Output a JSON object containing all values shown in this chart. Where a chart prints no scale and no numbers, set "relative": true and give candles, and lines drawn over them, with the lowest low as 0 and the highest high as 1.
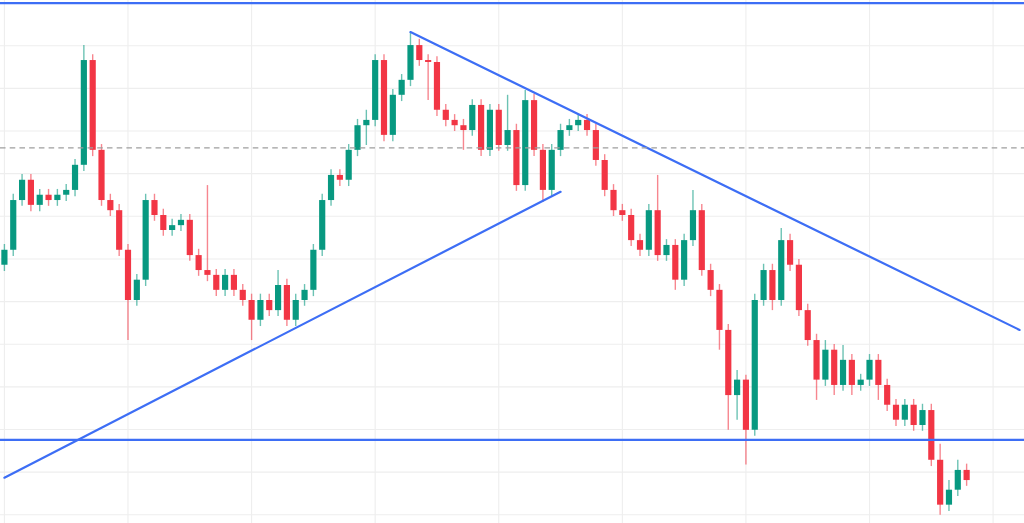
{
  "chart_data": {
    "type": "candlestick",
    "relative": true,
    "grid": true,
    "categories": [
      null,
      null,
      null,
      null,
      null,
      null,
      null,
      null,
      null,
      null,
      null,
      null,
      null,
      null,
      null,
      null,
      null,
      null,
      null,
      null,
      null,
      null,
      null,
      null,
      null,
      null,
      null,
      null,
      null,
      null,
      null,
      null,
      null,
      null,
      null,
      null,
      null,
      null,
      null,
      null,
      null,
      null,
      null,
      null,
      null,
      null,
      null,
      null,
      null,
      null,
      null,
      null,
      null,
      null,
      null,
      null,
      null,
      null,
      null,
      null,
      null,
      null,
      null,
      null,
      null,
      null,
      null,
      null,
      null,
      null,
      null,
      null,
      null,
      null,
      null,
      null,
      null,
      null,
      null,
      null,
      null,
      null,
      null,
      null,
      null,
      null,
      null,
      null,
      null,
      null,
      null,
      null,
      null,
      null,
      null,
      null,
      null,
      null,
      null,
      null,
      null,
      null,
      null,
      null,
      null,
      null,
      null,
      null,
      null,
      null,
      null,
      null,
      null,
      null,
      null,
      null
    ],
    "ohlc": [
      [
        0.518,
        0.561,
        0.505,
        0.549
      ],
      [
        0.549,
        0.665,
        0.536,
        0.652
      ],
      [
        0.652,
        0.706,
        0.64,
        0.694
      ],
      [
        0.694,
        0.706,
        0.629,
        0.642
      ],
      [
        0.642,
        0.675,
        0.629,
        0.663
      ],
      [
        0.663,
        0.675,
        0.64,
        0.652
      ],
      [
        0.652,
        0.675,
        0.64,
        0.663
      ],
      [
        0.663,
        0.685,
        0.65,
        0.673
      ],
      [
        0.673,
        0.737,
        0.66,
        0.725
      ],
      [
        0.725,
        0.973,
        0.712,
        0.942
      ],
      [
        0.942,
        0.954,
        0.743,
        0.756
      ],
      [
        0.756,
        0.768,
        0.64,
        0.652
      ],
      [
        0.652,
        0.665,
        0.619,
        0.631
      ],
      [
        0.631,
        0.644,
        0.536,
        0.549
      ],
      [
        0.549,
        0.561,
        0.362,
        0.445
      ],
      [
        0.445,
        0.499,
        0.433,
        0.487
      ],
      [
        0.487,
        0.665,
        0.474,
        0.652
      ],
      [
        0.652,
        0.665,
        0.609,
        0.621
      ],
      [
        0.621,
        0.634,
        0.578,
        0.59
      ],
      [
        0.59,
        0.613,
        0.578,
        0.6
      ],
      [
        0.6,
        0.623,
        0.588,
        0.611
      ],
      [
        0.611,
        0.623,
        0.526,
        0.538
      ],
      [
        0.538,
        0.551,
        0.495,
        0.507
      ],
      [
        0.507,
        0.683,
        0.484,
        0.497
      ],
      [
        0.497,
        0.509,
        0.453,
        0.466
      ],
      [
        0.466,
        0.509,
        0.453,
        0.497
      ],
      [
        0.497,
        0.509,
        0.453,
        0.466
      ],
      [
        0.466,
        0.478,
        0.433,
        0.445
      ],
      [
        0.445,
        0.458,
        0.362,
        0.404
      ],
      [
        0.404,
        0.458,
        0.391,
        0.445
      ],
      [
        0.445,
        0.458,
        0.412,
        0.424
      ],
      [
        0.424,
        0.507,
        0.412,
        0.476
      ],
      [
        0.476,
        0.489,
        0.391,
        0.404
      ],
      [
        0.404,
        0.458,
        0.391,
        0.445
      ],
      [
        0.445,
        0.478,
        0.433,
        0.466
      ],
      [
        0.466,
        0.561,
        0.453,
        0.549
      ],
      [
        0.549,
        0.665,
        0.536,
        0.652
      ],
      [
        0.652,
        0.716,
        0.64,
        0.704
      ],
      [
        0.704,
        0.716,
        0.681,
        0.694
      ],
      [
        0.694,
        0.768,
        0.681,
        0.756
      ],
      [
        0.756,
        0.82,
        0.743,
        0.807
      ],
      [
        0.807,
        0.839,
        0.766,
        0.818
      ],
      [
        0.818,
        0.954,
        0.805,
        0.942
      ],
      [
        0.942,
        0.954,
        0.774,
        0.787
      ],
      [
        0.787,
        0.882,
        0.774,
        0.87
      ],
      [
        0.87,
        0.913,
        0.857,
        0.901
      ],
      [
        0.901,
        1.0,
        0.888,
        0.973
      ],
      [
        0.973,
        0.986,
        0.93,
        0.942
      ],
      [
        0.942,
        0.954,
        0.859,
        0.938
      ],
      [
        0.938,
        0.95,
        0.826,
        0.839
      ],
      [
        0.839,
        0.851,
        0.805,
        0.818
      ],
      [
        0.818,
        0.83,
        0.795,
        0.807
      ],
      [
        0.807,
        0.82,
        0.756,
        0.797
      ],
      [
        0.797,
        0.861,
        0.785,
        0.849
      ],
      [
        0.849,
        0.861,
        0.743,
        0.756
      ],
      [
        0.756,
        0.851,
        0.743,
        0.839
      ],
      [
        0.839,
        0.851,
        0.754,
        0.766
      ],
      [
        0.766,
        0.87,
        0.754,
        0.797
      ],
      [
        0.797,
        0.81,
        0.671,
        0.683
      ],
      [
        0.683,
        0.88,
        0.671,
        0.859
      ],
      [
        0.859,
        0.872,
        0.743,
        0.756
      ],
      [
        0.756,
        0.768,
        0.648,
        0.673
      ],
      [
        0.673,
        0.768,
        0.66,
        0.756
      ],
      [
        0.756,
        0.81,
        0.743,
        0.797
      ],
      [
        0.797,
        0.82,
        0.785,
        0.807
      ],
      [
        0.807,
        0.83,
        0.795,
        0.818
      ],
      [
        0.818,
        0.83,
        0.785,
        0.797
      ],
      [
        0.797,
        0.81,
        0.723,
        0.735
      ],
      [
        0.735,
        0.747,
        0.66,
        0.673
      ],
      [
        0.673,
        0.685,
        0.619,
        0.631
      ],
      [
        0.631,
        0.644,
        0.609,
        0.621
      ],
      [
        0.621,
        0.634,
        0.557,
        0.569
      ],
      [
        0.569,
        0.582,
        0.536,
        0.549
      ],
      [
        0.549,
        0.644,
        0.536,
        0.631
      ],
      [
        0.631,
        0.704,
        0.526,
        0.538
      ],
      [
        0.538,
        0.571,
        0.526,
        0.559
      ],
      [
        0.559,
        0.571,
        0.466,
        0.487
      ],
      [
        0.487,
        0.582,
        0.474,
        0.569
      ],
      [
        0.569,
        0.673,
        0.557,
        0.631
      ],
      [
        0.631,
        0.644,
        0.495,
        0.507
      ],
      [
        0.507,
        0.52,
        0.453,
        0.466
      ],
      [
        0.466,
        0.478,
        0.342,
        0.383
      ],
      [
        0.383,
        0.395,
        0.176,
        0.248
      ],
      [
        0.248,
        0.3,
        0.197,
        0.28
      ],
      [
        0.28,
        0.29,
        0.104,
        0.176
      ],
      [
        0.176,
        0.458,
        0.164,
        0.445
      ],
      [
        0.445,
        0.52,
        0.433,
        0.507
      ],
      [
        0.507,
        0.52,
        0.424,
        0.445
      ],
      [
        0.445,
        0.594,
        0.433,
        0.569
      ],
      [
        0.569,
        0.582,
        0.505,
        0.518
      ],
      [
        0.518,
        0.53,
        0.412,
        0.424
      ],
      [
        0.424,
        0.437,
        0.35,
        0.362
      ],
      [
        0.362,
        0.375,
        0.238,
        0.28
      ],
      [
        0.28,
        0.362,
        0.267,
        0.342
      ],
      [
        0.342,
        0.354,
        0.248,
        0.269
      ],
      [
        0.269,
        0.352,
        0.257,
        0.321
      ],
      [
        0.321,
        0.333,
        0.248,
        0.269
      ],
      [
        0.269,
        0.292,
        0.257,
        0.28
      ],
      [
        0.28,
        0.333,
        0.267,
        0.321
      ],
      [
        0.321,
        0.333,
        0.238,
        0.269
      ],
      [
        0.269,
        0.282,
        0.215,
        0.228
      ],
      [
        0.228,
        0.24,
        0.184,
        0.197
      ],
      [
        0.197,
        0.24,
        0.184,
        0.228
      ],
      [
        0.228,
        0.24,
        0.174,
        0.186
      ],
      [
        0.186,
        0.23,
        0.174,
        0.217
      ],
      [
        0.217,
        0.23,
        0.101,
        0.114
      ],
      [
        0.114,
        0.147,
        0.0,
        0.021
      ],
      [
        0.021,
        0.072,
        0.008,
        0.052
      ],
      [
        0.052,
        0.114,
        0.039,
        0.093
      ],
      [
        0.093,
        0.106,
        0.06,
        0.072
      ],
      null,
      null,
      null,
      null,
      null,
      null
    ],
    "colors": [
      "#089981",
      "#089981",
      "#089981",
      "#f23645",
      "#089981",
      "#f23645",
      "#089981",
      "#089981",
      "#089981",
      "#089981",
      "#f23645",
      "#f23645",
      "#f23645",
      "#f23645",
      "#f23645",
      "#089981",
      "#089981",
      "#f23645",
      "#f23645",
      "#089981",
      "#089981",
      "#f23645",
      "#f23645",
      "#f23645",
      "#f23645",
      "#089981",
      "#f23645",
      "#f23645",
      "#f23645",
      "#089981",
      "#f23645",
      "#089981",
      "#f23645",
      "#089981",
      "#089981",
      "#089981",
      "#089981",
      "#089981",
      "#f23645",
      "#089981",
      "#089981",
      "#089981",
      "#089981",
      "#f23645",
      "#089981",
      "#089981",
      "#089981",
      "#f23645",
      "#f23645",
      "#f23645",
      "#f23645",
      "#f23645",
      "#f23645",
      "#089981",
      "#f23645",
      "#089981",
      "#f23645",
      "#089981",
      "#f23645",
      "#089981",
      "#f23645",
      "#f23645",
      "#089981",
      "#089981",
      "#089981",
      "#089981",
      "#f23645",
      "#f23645",
      "#f23645",
      "#f23645",
      "#f23645",
      "#f23645",
      "#f23645",
      "#089981",
      "#f23645",
      "#089981",
      "#f23645",
      "#089981",
      "#089981",
      "#f23645",
      "#f23645",
      "#f23645",
      "#f23645",
      "#089981",
      "#f23645",
      "#089981",
      "#089981",
      "#f23645",
      "#089981",
      "#f23645",
      "#f23645",
      "#f23645",
      "#f23645",
      "#089981",
      "#f23645",
      "#089981",
      "#f23645",
      "#089981",
      "#089981",
      "#f23645",
      "#f23645",
      "#f23645",
      "#089981",
      "#f23645",
      "#089981",
      "#f23645",
      "#f23645",
      "#089981",
      "#089981",
      "#f23645",
      null,
      null,
      null,
      null,
      null,
      null
    ],
    "series": [
      {
        "type": "line",
        "color": "#3d6ef5",
        "values": [
          null,
          null,
          null,
          null,
          null,
          null,
          null,
          null,
          null,
          null,
          null,
          null,
          null,
          null,
          null,
          null,
          null,
          null,
          null,
          null,
          null,
          null,
          null,
          null,
          null,
          null,
          null,
          null,
          null,
          null,
          null,
          null,
          null,
          null,
          null,
          null,
          null,
          null,
          null,
          null,
          null,
          null,
          null,
          null,
          null,
          null,
          1.0,
          null,
          null,
          null,
          null,
          null,
          null,
          null,
          null,
          null,
          null,
          null,
          null,
          null,
          null,
          null,
          null,
          null,
          null,
          null,
          null,
          null,
          null,
          null,
          null,
          null,
          null,
          null,
          null,
          null,
          null,
          null,
          null,
          null,
          null,
          null,
          null,
          null,
          null,
          null,
          null,
          null,
          null,
          null,
          null,
          null,
          null,
          null,
          null,
          null,
          null,
          null,
          null,
          null,
          null,
          null,
          null,
          null,
          null,
          null,
          null,
          null,
          null,
          null,
          null,
          null,
          null,
          null,
          null,
          0.383
        ]
      },
      {
        "type": "line",
        "color": "#3d6ef5",
        "values": [
          0.077,
          null,
          null,
          null,
          null,
          null,
          null,
          null,
          null,
          null,
          null,
          null,
          null,
          null,
          null,
          null,
          null,
          null,
          null,
          null,
          null,
          null,
          null,
          null,
          null,
          null,
          null,
          null,
          null,
          null,
          null,
          null,
          null,
          null,
          null,
          null,
          null,
          null,
          null,
          null,
          null,
          null,
          null,
          null,
          null,
          null,
          null,
          null,
          null,
          null,
          null,
          null,
          null,
          null,
          null,
          null,
          null,
          null,
          null,
          null,
          null,
          null,
          null,
          0.669,
          null,
          null,
          null,
          null,
          null,
          null,
          null,
          null,
          null,
          null,
          null,
          null,
          null,
          null,
          null,
          null,
          null,
          null,
          null,
          null,
          null,
          null,
          null,
          null,
          null,
          null,
          null,
          null,
          null,
          null,
          null,
          null,
          null,
          null,
          null,
          null,
          null,
          null,
          null,
          null,
          null,
          null,
          null,
          null,
          null,
          null,
          null,
          null,
          null,
          null,
          null,
          null
        ]
      }
    ],
    "ref_lines": [
      {
        "axis": "y",
        "value": 1.06,
        "color": "#3d6ef5",
        "line_style": "solid"
      },
      {
        "axis": "y",
        "value": 0.155,
        "color": "#3d6ef5",
        "line_style": "solid"
      },
      {
        "axis": "y",
        "value": 0.76,
        "color": "#9e9e9e",
        "line_style": "dashed"
      }
    ]
  }
}
